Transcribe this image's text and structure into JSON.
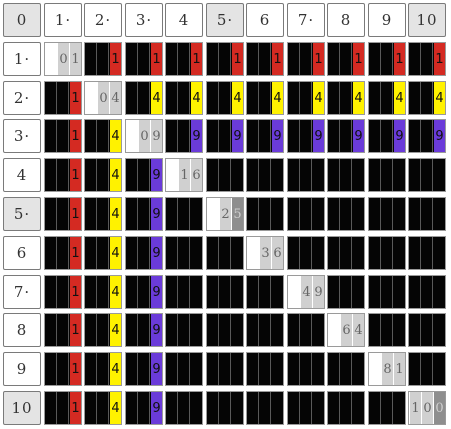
{
  "corner_label": "0",
  "column_headers": [
    "1·",
    "2·",
    "3·",
    "4",
    "5·",
    "6",
    "7·",
    "8",
    "9",
    "10"
  ],
  "row_headers": [
    "1·",
    "2·",
    "3·",
    "4",
    "5·",
    "6",
    "7·",
    "8",
    "9",
    "10"
  ],
  "shaded_headers": {
    "columns": [
      5,
      10
    ],
    "rows": [
      5,
      10
    ],
    "corner": true
  },
  "colors": {
    "red": "#d42a22",
    "yellow": "#fff200",
    "purple": "#6a3bd9",
    "diag_light": "#d0d0d0",
    "diag_dark": "#8e8e8e",
    "cell_bg": "#050505"
  },
  "grid": {
    "rows": [
      {
        "cells": [
          {
            "diag": "01"
          },
          {
            "bar": "1",
            "color": "red"
          },
          {
            "bar": "1",
            "color": "red"
          },
          {
            "bar": "1",
            "color": "red"
          },
          {
            "bar": "1",
            "color": "red"
          },
          {
            "bar": "1",
            "color": "red"
          },
          {
            "bar": "1",
            "color": "red"
          },
          {
            "bar": "1",
            "color": "red"
          },
          {
            "bar": "1",
            "color": "red"
          },
          {
            "bar": "1",
            "color": "red"
          }
        ]
      },
      {
        "cells": [
          {
            "bar": "1",
            "color": "red"
          },
          {
            "diag": "04"
          },
          {
            "bar": "4",
            "color": "yellow"
          },
          {
            "bar": "4",
            "color": "yellow"
          },
          {
            "bar": "4",
            "color": "yellow"
          },
          {
            "bar": "4",
            "color": "yellow"
          },
          {
            "bar": "4",
            "color": "yellow"
          },
          {
            "bar": "4",
            "color": "yellow"
          },
          {
            "bar": "4",
            "color": "yellow"
          },
          {
            "bar": "4",
            "color": "yellow"
          }
        ]
      },
      {
        "cells": [
          {
            "bar": "1",
            "color": "red"
          },
          {
            "bar": "4",
            "color": "yellow"
          },
          {
            "diag": "09"
          },
          {
            "bar": "9",
            "color": "purple"
          },
          {
            "bar": "9",
            "color": "purple"
          },
          {
            "bar": "9",
            "color": "purple"
          },
          {
            "bar": "9",
            "color": "purple"
          },
          {
            "bar": "9",
            "color": "purple"
          },
          {
            "bar": "9",
            "color": "purple"
          },
          {
            "bar": "9",
            "color": "purple"
          }
        ]
      },
      {
        "cells": [
          {
            "bar": "1",
            "color": "red"
          },
          {
            "bar": "4",
            "color": "yellow"
          },
          {
            "bar": "9",
            "color": "purple"
          },
          {
            "diag": "16"
          },
          {},
          {},
          {},
          {},
          {},
          {}
        ]
      },
      {
        "cells": [
          {
            "bar": "1",
            "color": "red"
          },
          {
            "bar": "4",
            "color": "yellow"
          },
          {
            "bar": "9",
            "color": "purple"
          },
          {},
          {
            "diag": "25"
          },
          {},
          {},
          {},
          {},
          {}
        ]
      },
      {
        "cells": [
          {
            "bar": "1",
            "color": "red"
          },
          {
            "bar": "4",
            "color": "yellow"
          },
          {
            "bar": "9",
            "color": "purple"
          },
          {},
          {},
          {
            "diag": "36"
          },
          {},
          {},
          {},
          {}
        ]
      },
      {
        "cells": [
          {
            "bar": "1",
            "color": "red"
          },
          {
            "bar": "4",
            "color": "yellow"
          },
          {
            "bar": "9",
            "color": "purple"
          },
          {},
          {},
          {},
          {
            "diag": "49"
          },
          {},
          {},
          {}
        ]
      },
      {
        "cells": [
          {
            "bar": "1",
            "color": "red"
          },
          {
            "bar": "4",
            "color": "yellow"
          },
          {
            "bar": "9",
            "color": "purple"
          },
          {},
          {},
          {},
          {},
          {
            "diag": "64"
          },
          {},
          {}
        ]
      },
      {
        "cells": [
          {
            "bar": "1",
            "color": "red"
          },
          {
            "bar": "4",
            "color": "yellow"
          },
          {
            "bar": "9",
            "color": "purple"
          },
          {},
          {},
          {},
          {},
          {},
          {
            "diag": "81"
          },
          {}
        ]
      },
      {
        "cells": [
          {
            "bar": "1",
            "color": "red"
          },
          {
            "bar": "4",
            "color": "yellow"
          },
          {
            "bar": "9",
            "color": "purple"
          },
          {},
          {},
          {},
          {},
          {},
          {},
          {
            "diag": "100"
          }
        ]
      }
    ]
  }
}
